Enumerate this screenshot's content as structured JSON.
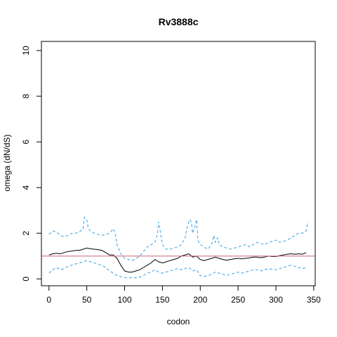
{
  "chart_data": {
    "type": "line",
    "title": "Rv3888c",
    "xlabel": "codon",
    "ylabel": "omega (dN/dS)",
    "xlim": [
      -10,
      352
    ],
    "ylim": [
      -0.3,
      10.4
    ],
    "xticks": [
      "0",
      "50",
      "100",
      "150",
      "200",
      "250",
      "300",
      "350"
    ],
    "yticks": [
      "0",
      "2",
      "4",
      "6",
      "8",
      "10"
    ],
    "grid": false,
    "reference_line": {
      "y": 1,
      "color": "#cc6677"
    },
    "series": [
      {
        "role": "estimate",
        "style": "solid",
        "color": "#000000",
        "x": [
          0,
          5,
          10,
          15,
          20,
          25,
          30,
          35,
          40,
          45,
          50,
          55,
          60,
          65,
          70,
          75,
          80,
          85,
          90,
          95,
          100,
          105,
          110,
          115,
          120,
          125,
          130,
          135,
          140,
          145,
          150,
          155,
          160,
          165,
          170,
          175,
          180,
          185,
          190,
          195,
          200,
          205,
          210,
          215,
          220,
          225,
          230,
          235,
          240,
          245,
          250,
          255,
          260,
          265,
          270,
          275,
          280,
          285,
          290,
          295,
          300,
          305,
          310,
          315,
          320,
          325,
          330,
          335,
          340
        ],
        "y": [
          1.05,
          1.1,
          1.12,
          1.1,
          1.15,
          1.2,
          1.22,
          1.25,
          1.25,
          1.3,
          1.35,
          1.32,
          1.3,
          1.28,
          1.25,
          1.15,
          1.05,
          1.05,
          0.9,
          0.6,
          0.35,
          0.3,
          0.3,
          0.35,
          0.4,
          0.5,
          0.6,
          0.7,
          0.85,
          0.75,
          0.7,
          0.75,
          0.8,
          0.85,
          0.9,
          1.0,
          1.05,
          1.1,
          0.95,
          1.0,
          0.85,
          0.8,
          0.85,
          0.9,
          0.95,
          0.9,
          0.85,
          0.82,
          0.85,
          0.88,
          0.9,
          0.88,
          0.9,
          0.92,
          0.95,
          0.95,
          0.93,
          0.95,
          1.0,
          0.98,
          0.98,
          1.02,
          1.05,
          1.08,
          1.1,
          1.08,
          1.1,
          1.08,
          1.15
        ]
      },
      {
        "role": "upper bound",
        "style": "dashed",
        "color": "#3aa0e0",
        "x": [
          0,
          5,
          10,
          15,
          20,
          25,
          30,
          35,
          40,
          45,
          47,
          50,
          52,
          55,
          60,
          65,
          70,
          75,
          80,
          85,
          88,
          90,
          95,
          100,
          105,
          110,
          115,
          120,
          125,
          130,
          135,
          140,
          143,
          145,
          148,
          150,
          155,
          160,
          165,
          170,
          175,
          180,
          183,
          186,
          188,
          190,
          193,
          195,
          197,
          200,
          205,
          210,
          215,
          218,
          220,
          223,
          225,
          230,
          235,
          240,
          245,
          250,
          255,
          260,
          265,
          270,
          275,
          280,
          285,
          290,
          295,
          300,
          305,
          310,
          315,
          320,
          325,
          330,
          335,
          340,
          342
        ],
        "y": [
          1.95,
          2.1,
          2.05,
          1.9,
          1.85,
          1.9,
          2.0,
          2.0,
          2.05,
          2.2,
          2.7,
          2.6,
          2.2,
          2.1,
          2.0,
          1.95,
          1.9,
          1.95,
          2.0,
          2.2,
          1.9,
          1.5,
          1.1,
          0.9,
          0.85,
          0.8,
          0.9,
          1.0,
          1.2,
          1.4,
          1.5,
          1.6,
          1.9,
          2.5,
          1.9,
          1.5,
          1.3,
          1.3,
          1.35,
          1.4,
          1.5,
          1.8,
          2.3,
          2.6,
          2.5,
          2.0,
          2.3,
          2.6,
          1.7,
          1.5,
          1.4,
          1.3,
          1.5,
          1.9,
          1.6,
          1.8,
          1.5,
          1.4,
          1.35,
          1.3,
          1.35,
          1.4,
          1.45,
          1.5,
          1.4,
          1.5,
          1.6,
          1.55,
          1.5,
          1.6,
          1.65,
          1.7,
          1.6,
          1.65,
          1.7,
          1.8,
          1.9,
          2.0,
          2.0,
          2.1,
          2.5
        ]
      },
      {
        "role": "lower bound",
        "style": "dashed",
        "color": "#3aa0e0",
        "x": [
          0,
          5,
          10,
          15,
          20,
          25,
          30,
          35,
          40,
          45,
          50,
          55,
          60,
          65,
          70,
          75,
          80,
          85,
          90,
          95,
          100,
          105,
          110,
          115,
          120,
          125,
          130,
          135,
          140,
          145,
          150,
          155,
          160,
          165,
          170,
          175,
          180,
          185,
          190,
          195,
          200,
          205,
          210,
          215,
          220,
          225,
          230,
          235,
          240,
          245,
          250,
          255,
          260,
          265,
          270,
          275,
          280,
          285,
          290,
          295,
          300,
          305,
          310,
          315,
          320,
          325,
          330,
          335,
          340
        ],
        "y": [
          0.25,
          0.4,
          0.5,
          0.4,
          0.45,
          0.55,
          0.6,
          0.65,
          0.7,
          0.75,
          0.8,
          0.75,
          0.7,
          0.65,
          0.6,
          0.5,
          0.35,
          0.25,
          0.15,
          0.1,
          0.05,
          0.05,
          0.05,
          0.05,
          0.08,
          0.15,
          0.25,
          0.3,
          0.4,
          0.3,
          0.25,
          0.3,
          0.35,
          0.4,
          0.45,
          0.4,
          0.45,
          0.5,
          0.35,
          0.4,
          0.15,
          0.1,
          0.15,
          0.2,
          0.3,
          0.25,
          0.2,
          0.15,
          0.2,
          0.25,
          0.3,
          0.25,
          0.3,
          0.35,
          0.4,
          0.4,
          0.35,
          0.4,
          0.45,
          0.42,
          0.4,
          0.45,
          0.5,
          0.55,
          0.6,
          0.55,
          0.5,
          0.45,
          0.5
        ]
      }
    ]
  }
}
